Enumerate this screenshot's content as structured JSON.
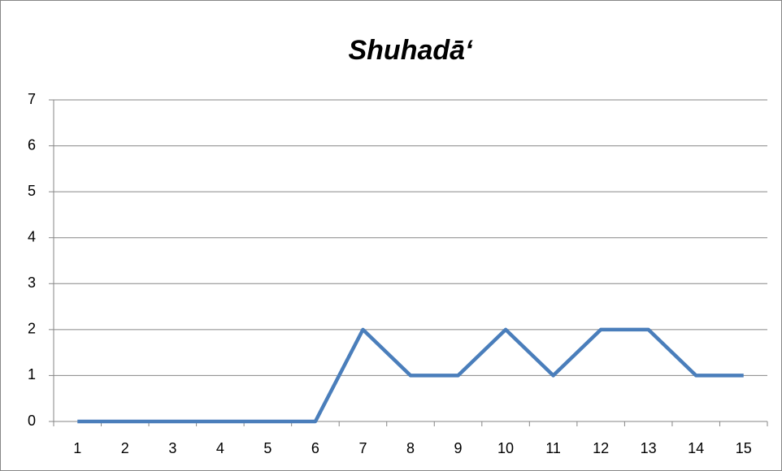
{
  "chart_data": {
    "type": "line",
    "title": "Shuhadā‘",
    "categories": [
      "1",
      "2",
      "3",
      "4",
      "5",
      "6",
      "7",
      "8",
      "9",
      "10",
      "11",
      "12",
      "13",
      "14",
      "15"
    ],
    "series": [
      {
        "name": "Shuhadā‘",
        "color": "#4a7ebb",
        "values": [
          0,
          0,
          0,
          0,
          0,
          0,
          2,
          1,
          1,
          2,
          1,
          2,
          2,
          1,
          1
        ]
      }
    ],
    "ylim": [
      0,
      7
    ],
    "yticks": [
      0,
      1,
      2,
      3,
      4,
      5,
      6,
      7
    ],
    "grid": true
  }
}
